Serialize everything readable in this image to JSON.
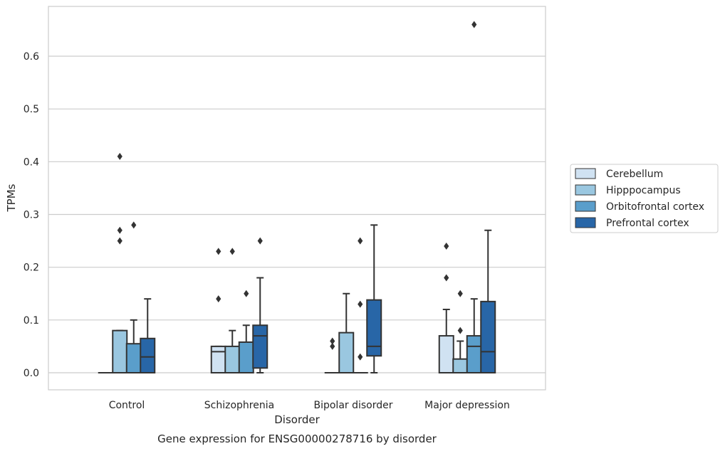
{
  "chart_data": {
    "type": "box",
    "title": "Gene expression for ENSG00000278716 by disorder",
    "xlabel": "Disorder",
    "ylabel": "TPMs",
    "ylim": [
      -0.032,
      0.695
    ],
    "yticks": [
      0.0,
      0.1,
      0.2,
      0.3,
      0.4,
      0.5,
      0.6
    ],
    "ytick_labels": [
      "0.0",
      "0.1",
      "0.2",
      "0.3",
      "0.4",
      "0.5",
      "0.6"
    ],
    "grid": "horizontal",
    "legend_position": "right",
    "categories": [
      "Control",
      "Schizophrenia",
      "Bipolar disorder",
      "Major depression"
    ],
    "colors": {
      "Cerebellum": "#d0e2f2",
      "Hipppocampus": "#9ac7e0",
      "Orbitofrontal cortex": "#5a9ecb",
      "Prefrontal cortex": "#2866a7",
      "edge": "#333333",
      "grid": "#cccccc",
      "frame": "#cccccc"
    },
    "series": [
      {
        "name": "Cerebellum",
        "boxes": [
          {
            "q1": 0.0,
            "median": 0.0,
            "q3": 0.0,
            "whislo": 0.0,
            "whishi": 0.0,
            "fliers": []
          },
          {
            "q1": 0.0,
            "median": 0.04,
            "q3": 0.05,
            "whislo": 0.0,
            "whishi": 0.05,
            "fliers": [
              0.14,
              0.23
            ]
          },
          {
            "q1": 0.0,
            "median": 0.0,
            "q3": 0.0,
            "whislo": 0.0,
            "whishi": 0.0,
            "fliers": [
              0.05,
              0.06
            ]
          },
          {
            "q1": 0.0,
            "median": 0.0,
            "q3": 0.07,
            "whislo": 0.0,
            "whishi": 0.12,
            "fliers": [
              0.18,
              0.24
            ]
          }
        ]
      },
      {
        "name": "Hipppocampus",
        "boxes": [
          {
            "q1": 0.0,
            "median": 0.0,
            "q3": 0.08,
            "whislo": 0.0,
            "whishi": 0.08,
            "fliers": [
              0.25,
              0.27,
              0.41
            ]
          },
          {
            "q1": 0.0,
            "median": 0.0,
            "q3": 0.05,
            "whislo": 0.0,
            "whishi": 0.08,
            "fliers": [
              0.23
            ]
          },
          {
            "q1": 0.0,
            "median": 0.0,
            "q3": 0.076,
            "whislo": 0.0,
            "whishi": 0.15,
            "fliers": []
          },
          {
            "q1": 0.0,
            "median": 0.0,
            "q3": 0.026,
            "whislo": 0.0,
            "whishi": 0.06,
            "fliers": [
              0.08,
              0.15
            ]
          }
        ]
      },
      {
        "name": "Orbitofrontal cortex",
        "boxes": [
          {
            "q1": 0.0,
            "median": 0.0,
            "q3": 0.055,
            "whislo": 0.0,
            "whishi": 0.1,
            "fliers": [
              0.28
            ]
          },
          {
            "q1": 0.0,
            "median": 0.0,
            "q3": 0.058,
            "whislo": 0.0,
            "whishi": 0.09,
            "fliers": [
              0.15
            ]
          },
          {
            "q1": 0.0,
            "median": 0.0,
            "q3": 0.0,
            "whislo": 0.0,
            "whishi": 0.0,
            "fliers": [
              0.03,
              0.13,
              0.25
            ]
          },
          {
            "q1": 0.0,
            "median": 0.05,
            "q3": 0.07,
            "whislo": 0.0,
            "whishi": 0.14,
            "fliers": [
              0.66
            ]
          }
        ]
      },
      {
        "name": "Prefrontal cortex",
        "boxes": [
          {
            "q1": 0.0,
            "median": 0.03,
            "q3": 0.065,
            "whislo": 0.0,
            "whishi": 0.14,
            "fliers": []
          },
          {
            "q1": 0.009,
            "median": 0.07,
            "q3": 0.09,
            "whislo": 0.0,
            "whishi": 0.18,
            "fliers": [
              0.25
            ]
          },
          {
            "q1": 0.032,
            "median": 0.05,
            "q3": 0.138,
            "whislo": 0.0,
            "whishi": 0.28,
            "fliers": []
          },
          {
            "q1": 0.0,
            "median": 0.04,
            "q3": 0.135,
            "whislo": 0.0,
            "whishi": 0.27,
            "fliers": []
          }
        ]
      }
    ]
  }
}
